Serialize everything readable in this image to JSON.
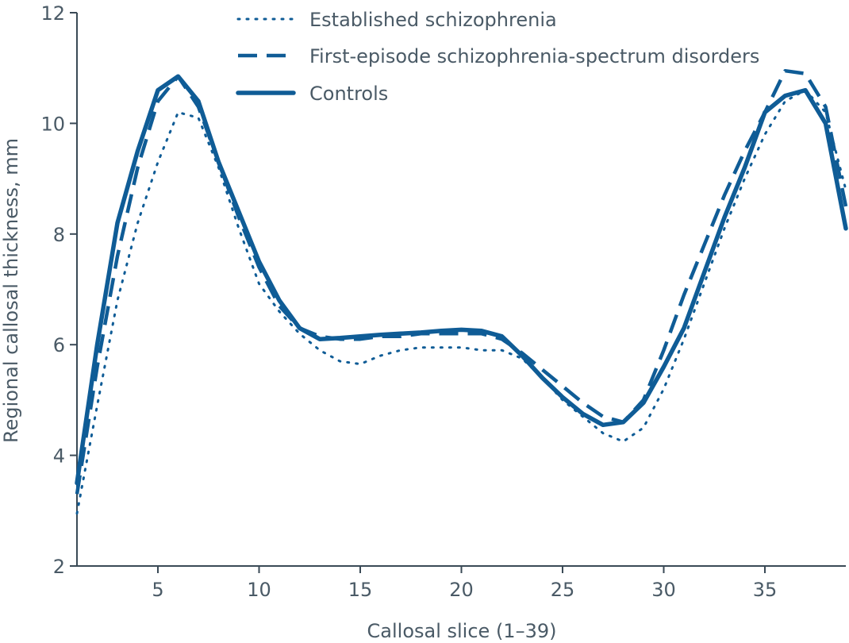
{
  "colors": {
    "series": "#0f5c96",
    "axis": "#3a4a56",
    "text": "#4a5a66",
    "background": "#ffffff"
  },
  "chart_data": {
    "type": "line",
    "title": "",
    "xlabel": "Callosal slice (1–39)",
    "ylabel": "Regional callosal thickness, mm",
    "xlim": [
      1,
      39
    ],
    "ylim": [
      2,
      12
    ],
    "xticks": [
      5,
      10,
      15,
      20,
      25,
      30,
      35
    ],
    "yticks": [
      2,
      4,
      6,
      8,
      10,
      12
    ],
    "grid": false,
    "legend_position": "top",
    "x": [
      1,
      2,
      3,
      4,
      5,
      6,
      7,
      8,
      9,
      10,
      11,
      12,
      13,
      14,
      15,
      16,
      17,
      18,
      19,
      20,
      21,
      22,
      23,
      24,
      25,
      26,
      27,
      28,
      29,
      30,
      31,
      32,
      33,
      34,
      35,
      36,
      37,
      38,
      39
    ],
    "series": [
      {
        "name": "Established schizophrenia",
        "style": "dotted",
        "values": [
          2.95,
          4.9,
          6.8,
          8.2,
          9.3,
          10.2,
          10.1,
          9.2,
          8.1,
          7.1,
          6.6,
          6.2,
          5.9,
          5.7,
          5.65,
          5.8,
          5.9,
          5.95,
          5.95,
          5.95,
          5.9,
          5.9,
          5.75,
          5.4,
          5.0,
          4.7,
          4.4,
          4.25,
          4.5,
          5.2,
          6.1,
          7.1,
          8.1,
          9.0,
          9.8,
          10.4,
          10.6,
          10.2,
          8.8
        ]
      },
      {
        "name": "First-episode schizophrenia-spectrum disorders",
        "style": "dashed",
        "values": [
          3.3,
          5.6,
          7.6,
          9.2,
          10.4,
          10.85,
          10.3,
          9.3,
          8.3,
          7.4,
          6.7,
          6.3,
          6.15,
          6.1,
          6.1,
          6.15,
          6.15,
          6.2,
          6.2,
          6.2,
          6.2,
          6.1,
          5.85,
          5.55,
          5.25,
          4.95,
          4.7,
          4.6,
          5.0,
          5.9,
          6.9,
          7.8,
          8.7,
          9.5,
          10.2,
          10.95,
          10.9,
          10.3,
          8.5
        ]
      },
      {
        "name": "Controls",
        "style": "solid",
        "values": [
          3.5,
          6.0,
          8.2,
          9.5,
          10.6,
          10.85,
          10.4,
          9.3,
          8.4,
          7.5,
          6.8,
          6.3,
          6.1,
          6.12,
          6.15,
          6.18,
          6.2,
          6.22,
          6.25,
          6.27,
          6.25,
          6.15,
          5.8,
          5.4,
          5.05,
          4.75,
          4.55,
          4.6,
          4.95,
          5.6,
          6.3,
          7.3,
          8.3,
          9.2,
          10.2,
          10.5,
          10.6,
          10.0,
          8.1
        ]
      }
    ]
  }
}
